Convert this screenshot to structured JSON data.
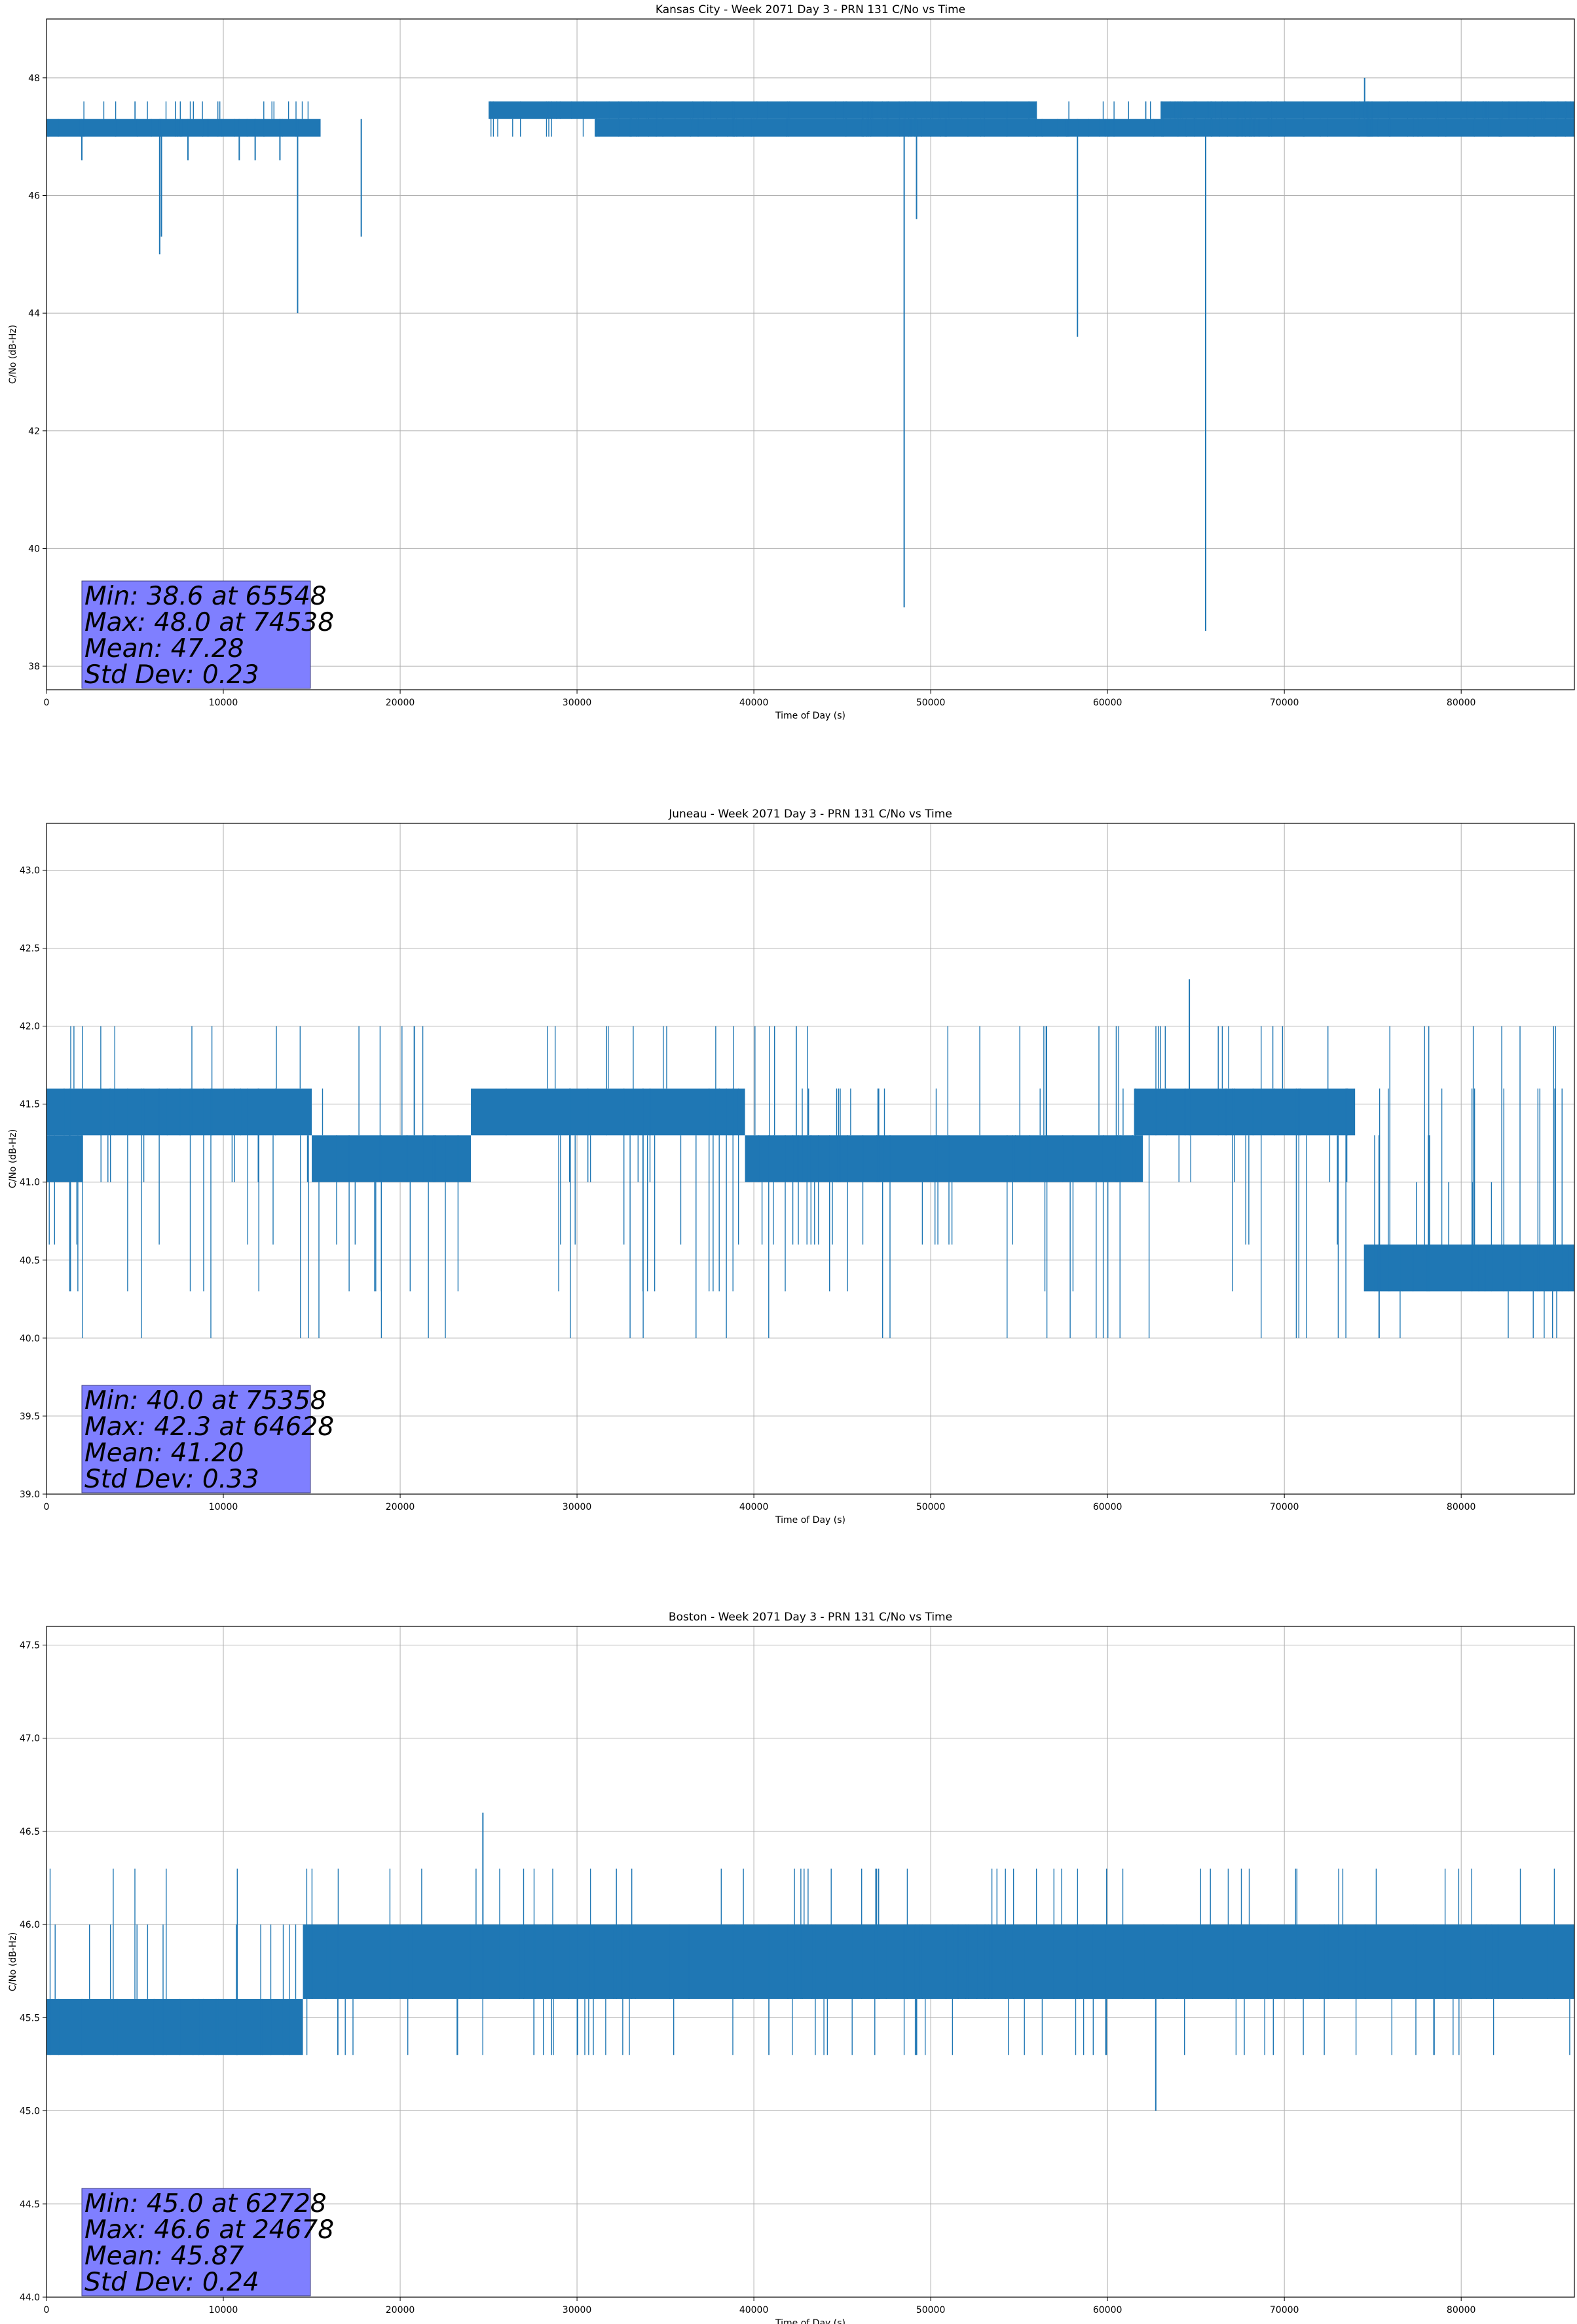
{
  "chart_data": [
    {
      "type": "line",
      "title": "Kansas City - Week 2071 Day 3 - PRN 131 C/No vs Time",
      "xlabel": "Time of Day (s)",
      "ylabel": "C/No (dB-Hz)",
      "xlim": [
        0,
        86400
      ],
      "ylim": [
        37.6,
        49.0
      ],
      "xticks": [
        0,
        10000,
        20000,
        30000,
        40000,
        50000,
        60000,
        70000,
        80000
      ],
      "yticks": [
        38,
        40,
        42,
        44,
        46,
        48
      ],
      "ytick_decimals": 0,
      "grid": true,
      "color": "#1f77b4",
      "base": 47.3,
      "levels": [
        47.0,
        47.3,
        47.6
      ],
      "band": [
        47.0,
        47.3
      ],
      "band_segments": [
        [
          0,
          15500
        ],
        [
          31000,
          86400
        ]
      ],
      "upper_band": [
        47.3,
        47.6
      ],
      "upper_band_segments": [
        [
          25000,
          56000
        ],
        [
          63000,
          86400
        ]
      ],
      "spikes": [
        {
          "x": 2000,
          "y": 46.6
        },
        {
          "x": 6400,
          "y": 45.0
        },
        {
          "x": 6500,
          "y": 45.3
        },
        {
          "x": 8000,
          "y": 46.6
        },
        {
          "x": 10900,
          "y": 46.6
        },
        {
          "x": 11800,
          "y": 46.6
        },
        {
          "x": 13200,
          "y": 46.6
        },
        {
          "x": 14200,
          "y": 44.0
        },
        {
          "x": 17800,
          "y": 45.3
        },
        {
          "x": 48500,
          "y": 39.0
        },
        {
          "x": 49200,
          "y": 45.6
        },
        {
          "x": 58300,
          "y": 43.6
        },
        {
          "x": 65548,
          "y": 38.6
        },
        {
          "x": 74538,
          "y": 48.0
        }
      ],
      "stats": {
        "min_text": "Min: 38.6 at 65548",
        "max_text": "Max: 48.0 at 74538",
        "mean_text": "Mean: 47.28",
        "std_text": "Std Dev: 0.23"
      }
    },
    {
      "type": "line",
      "title": "Juneau - Week 2071 Day 3 - PRN 131 C/No vs Time",
      "xlabel": "Time of Day (s)",
      "ylabel": "C/No (dB-Hz)",
      "xlim": [
        0,
        86400
      ],
      "ylim": [
        39.0,
        43.3
      ],
      "xticks": [
        0,
        10000,
        20000,
        30000,
        40000,
        50000,
        60000,
        70000,
        80000
      ],
      "yticks": [
        39.0,
        39.5,
        40.0,
        40.5,
        41.0,
        41.5,
        42.0,
        42.5,
        43.0
      ],
      "ytick_decimals": 1,
      "grid": true,
      "color": "#1f77b4",
      "base": 41.3,
      "levels": [
        40.0,
        40.3,
        40.6,
        41.0,
        41.3,
        41.6,
        42.0
      ],
      "band": [
        41.3,
        41.6
      ],
      "band_segments": [
        [
          0,
          15000
        ],
        [
          24000,
          39500
        ],
        [
          61500,
          74000
        ]
      ],
      "lower_band": [
        41.0,
        41.3
      ],
      "lower_band_segments": [
        [
          0,
          2000
        ],
        [
          39500,
          62000
        ],
        [
          15000,
          24000
        ]
      ],
      "tail_band": [
        40.3,
        40.6
      ],
      "tail_band_segments": [
        [
          74500,
          86400
        ]
      ],
      "spikes": [
        {
          "x": 20800,
          "y": 42.0
        },
        {
          "x": 64628,
          "y": 42.3
        },
        {
          "x": 75358,
          "y": 40.0
        }
      ],
      "stats": {
        "min_text": "Min: 40.0 at 75358",
        "max_text": "Max: 42.3 at 64628",
        "mean_text": "Mean: 41.20",
        "std_text": "Std Dev: 0.33"
      }
    },
    {
      "type": "line",
      "title": "Boston - Week 2071 Day 3 - PRN 131 C/No vs Time",
      "xlabel": "Time of Day (s)",
      "ylabel": "C/No (dB-Hz)",
      "xlim": [
        0,
        86400
      ],
      "ylim": [
        44.0,
        47.6
      ],
      "xticks": [
        0,
        10000,
        20000,
        30000,
        40000,
        50000,
        60000,
        70000,
        80000
      ],
      "yticks": [
        44.0,
        44.5,
        45.0,
        45.5,
        46.0,
        46.5,
        47.0,
        47.5
      ],
      "ytick_decimals": 1,
      "grid": true,
      "color": "#1f77b4",
      "base": 45.6,
      "levels": [
        45.3,
        45.6,
        46.0,
        46.3
      ],
      "band": [
        45.6,
        46.0
      ],
      "band_segments": [
        [
          14500,
          86400
        ]
      ],
      "lower_band": [
        45.3,
        45.6
      ],
      "lower_band_segments": [
        [
          0,
          14500
        ]
      ],
      "spikes": [
        {
          "x": 24678,
          "y": 46.6
        },
        {
          "x": 62728,
          "y": 45.0
        },
        {
          "x": 49200,
          "y": 45.3
        }
      ],
      "stats": {
        "min_text": "Min: 45.0 at 62728",
        "max_text": "Max: 46.6 at 24678",
        "mean_text": "Mean: 45.87",
        "std_text": "Std Dev: 0.24"
      }
    }
  ]
}
